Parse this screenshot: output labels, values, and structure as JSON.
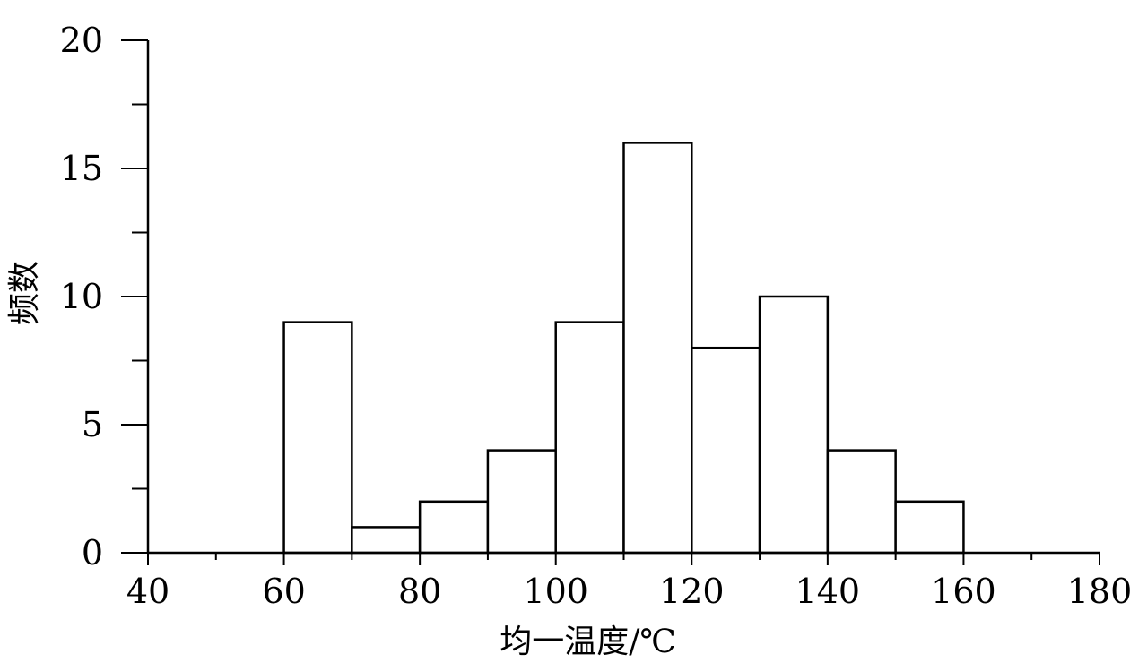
{
  "chart_data": {
    "type": "bar",
    "title": "",
    "xlabel": "均一温度/℃",
    "ylabel": "频数",
    "bins": [
      {
        "x0": 60,
        "x1": 70,
        "value": 9
      },
      {
        "x0": 70,
        "x1": 80,
        "value": 1
      },
      {
        "x0": 80,
        "x1": 90,
        "value": 2
      },
      {
        "x0": 90,
        "x1": 100,
        "value": 4
      },
      {
        "x0": 100,
        "x1": 110,
        "value": 9
      },
      {
        "x0": 110,
        "x1": 120,
        "value": 16
      },
      {
        "x0": 120,
        "x1": 130,
        "value": 8
      },
      {
        "x0": 130,
        "x1": 140,
        "value": 10
      },
      {
        "x0": 140,
        "x1": 150,
        "value": 4
      },
      {
        "x0": 150,
        "x1": 160,
        "value": 2
      }
    ],
    "xlim": [
      40,
      180
    ],
    "ylim": [
      0,
      20
    ],
    "x_ticks": [
      "40",
      "60",
      "80",
      "100",
      "120",
      "140",
      "160",
      "180"
    ],
    "x_minor_step": 10,
    "y_ticks": [
      "0",
      "5",
      "10",
      "15",
      "20"
    ],
    "y_minor_step": 2.5,
    "grid": false,
    "colors": {
      "bar_fill": "#ffffff",
      "bar_stroke": "#000000"
    }
  }
}
